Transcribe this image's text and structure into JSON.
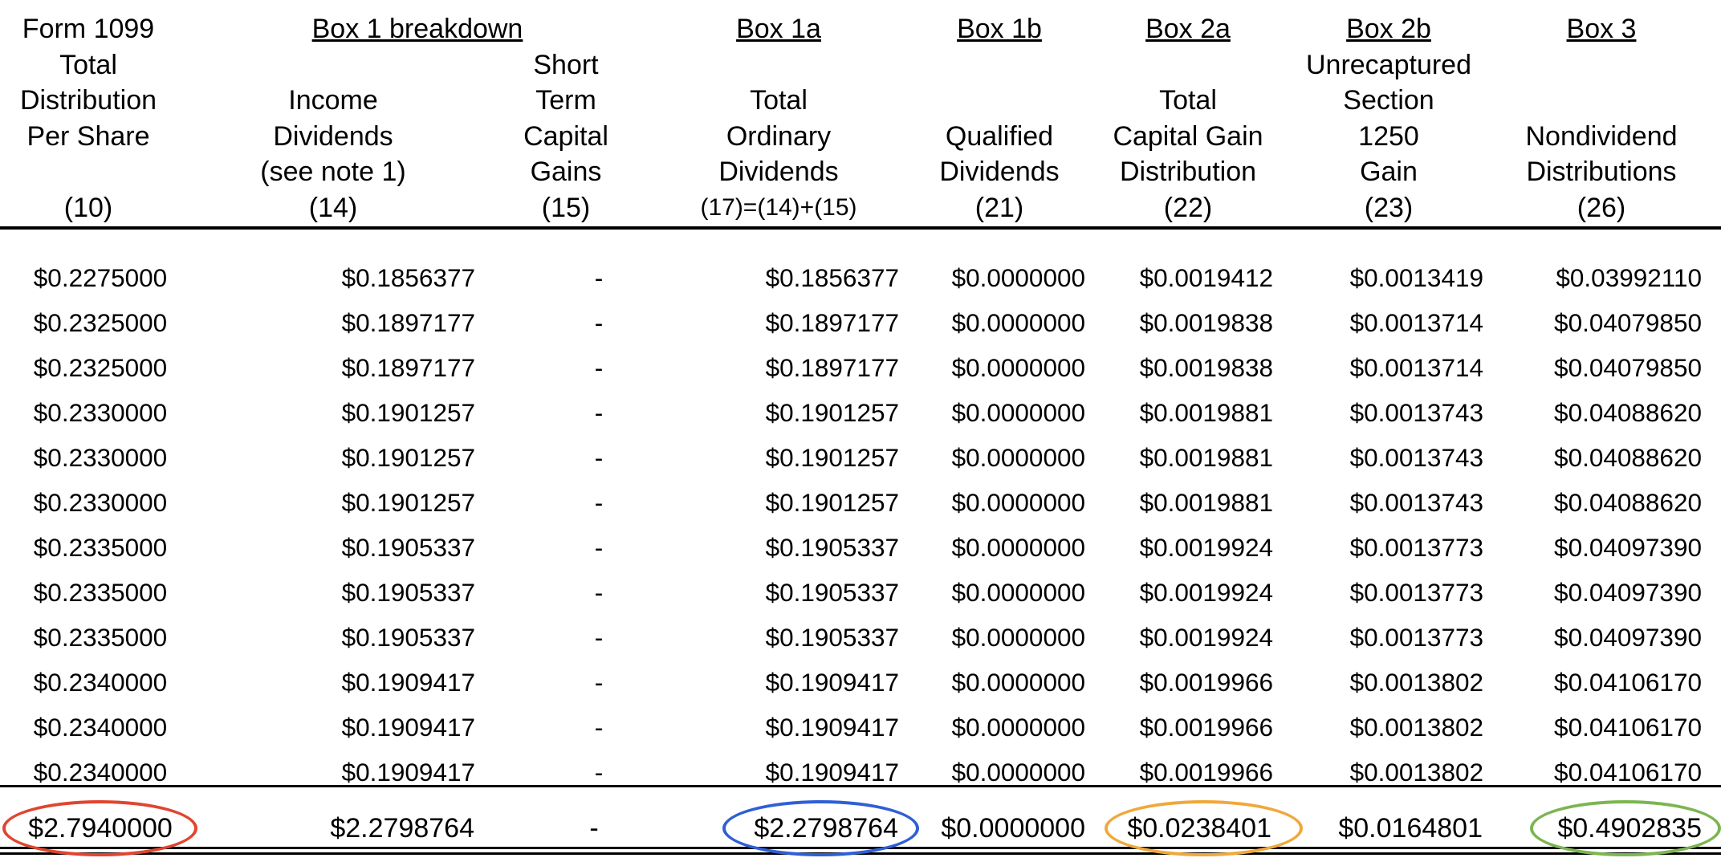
{
  "headers": [
    {
      "box": "Form 1099",
      "lines": [
        "Total",
        "Distribution",
        "Per Share",
        ""
      ],
      "ref": "(10)"
    },
    {
      "box": "Box 1 breakdown",
      "lines": [
        "",
        "Income",
        "Dividends",
        "(see note 1)"
      ],
      "ref": "(14)"
    },
    {
      "box": "",
      "lines": [
        "Short",
        "Term",
        "Capital",
        "Gains"
      ],
      "ref": "(15)"
    },
    {
      "box": "Box 1a",
      "lines": [
        "",
        "Total",
        "Ordinary",
        "Dividends"
      ],
      "ref": "(17)=(14)+(15)"
    },
    {
      "box": "Box 1b",
      "lines": [
        "",
        "",
        "Qualified",
        "Dividends"
      ],
      "ref": "(21)"
    },
    {
      "box": "Box 2a",
      "lines": [
        "",
        "Total",
        "Capital Gain",
        "Distribution"
      ],
      "ref": "(22)"
    },
    {
      "box": "Box 2b",
      "lines": [
        "Unrecaptured",
        "Section",
        "1250",
        "Gain"
      ],
      "ref": "(23)"
    },
    {
      "box": "Box 3",
      "lines": [
        "",
        "",
        "Nondividend",
        "Distributions"
      ],
      "ref": "(26)"
    }
  ],
  "rows": [
    [
      "$0.2275000",
      "$0.1856377",
      "-",
      "$0.1856377",
      "$0.0000000",
      "$0.0019412",
      "$0.0013419",
      "$0.03992110"
    ],
    [
      "$0.2325000",
      "$0.1897177",
      "-",
      "$0.1897177",
      "$0.0000000",
      "$0.0019838",
      "$0.0013714",
      "$0.04079850"
    ],
    [
      "$0.2325000",
      "$0.1897177",
      "-",
      "$0.1897177",
      "$0.0000000",
      "$0.0019838",
      "$0.0013714",
      "$0.04079850"
    ],
    [
      "$0.2330000",
      "$0.1901257",
      "-",
      "$0.1901257",
      "$0.0000000",
      "$0.0019881",
      "$0.0013743",
      "$0.04088620"
    ],
    [
      "$0.2330000",
      "$0.1901257",
      "-",
      "$0.1901257",
      "$0.0000000",
      "$0.0019881",
      "$0.0013743",
      "$0.04088620"
    ],
    [
      "$0.2330000",
      "$0.1901257",
      "-",
      "$0.1901257",
      "$0.0000000",
      "$0.0019881",
      "$0.0013743",
      "$0.04088620"
    ],
    [
      "$0.2335000",
      "$0.1905337",
      "-",
      "$0.1905337",
      "$0.0000000",
      "$0.0019924",
      "$0.0013773",
      "$0.04097390"
    ],
    [
      "$0.2335000",
      "$0.1905337",
      "-",
      "$0.1905337",
      "$0.0000000",
      "$0.0019924",
      "$0.0013773",
      "$0.04097390"
    ],
    [
      "$0.2335000",
      "$0.1905337",
      "-",
      "$0.1905337",
      "$0.0000000",
      "$0.0019924",
      "$0.0013773",
      "$0.04097390"
    ],
    [
      "$0.2340000",
      "$0.1909417",
      "-",
      "$0.1909417",
      "$0.0000000",
      "$0.0019966",
      "$0.0013802",
      "$0.04106170"
    ],
    [
      "$0.2340000",
      "$0.1909417",
      "-",
      "$0.1909417",
      "$0.0000000",
      "$0.0019966",
      "$0.0013802",
      "$0.04106170"
    ],
    [
      "$0.2340000",
      "$0.1909417",
      "-",
      "$0.1909417",
      "$0.0000000",
      "$0.0019966",
      "$0.0013802",
      "$0.04106170"
    ]
  ],
  "totals": [
    "$2.7940000",
    "$2.2798764",
    "-",
    "$2.2798764",
    "$0.0000000",
    "$0.0238401",
    "$0.0164801",
    "$0.4902835"
  ],
  "highlight_colors": {
    "total_distribution": "#e0452f",
    "box_1a": "#2f5fd6",
    "box_2a": "#f0a83c",
    "box_3": "#7cb553"
  }
}
